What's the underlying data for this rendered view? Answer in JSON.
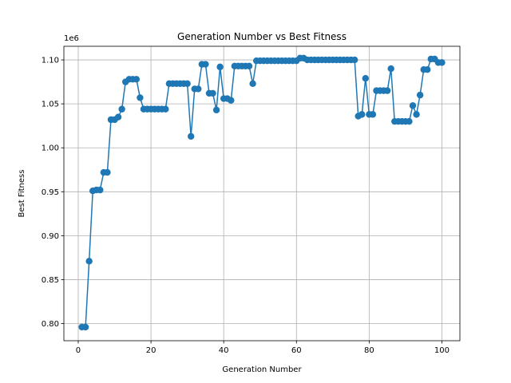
{
  "chart_data": {
    "type": "line",
    "title": "Generation Number vs Best Fitness",
    "xlabel": "Generation Number",
    "ylabel": "Best Fitness",
    "y_offset_label": "1e6",
    "xlim": [
      -3.95,
      104.95
    ],
    "ylim": [
      0.7805,
      1.1155
    ],
    "xticks": [
      0,
      20,
      40,
      60,
      80,
      100
    ],
    "xtick_labels": [
      "0",
      "20",
      "40",
      "60",
      "80",
      "100"
    ],
    "yticks": [
      0.8,
      0.85,
      0.9,
      0.95,
      1.0,
      1.05,
      1.1
    ],
    "ytick_labels": [
      "0.80",
      "0.85",
      "0.90",
      "0.95",
      "1.00",
      "1.05",
      "1.10"
    ],
    "grid": true,
    "marker": "circle",
    "color": "#1f77b4",
    "series": [
      {
        "x": [
          1,
          2,
          3,
          4,
          5,
          6,
          7,
          8,
          9,
          10,
          11,
          12,
          13,
          14,
          15,
          16,
          17,
          18,
          19,
          20,
          21,
          22,
          23,
          24,
          25,
          26,
          27,
          28,
          29,
          30,
          31,
          32,
          33,
          34,
          35,
          36,
          37,
          38,
          39,
          40,
          41,
          42,
          43,
          44,
          45,
          46,
          47,
          48,
          49,
          50,
          51,
          52,
          53,
          54,
          55,
          56,
          57,
          58,
          59,
          60,
          61,
          62,
          63,
          64,
          65,
          66,
          67,
          68,
          69,
          70,
          71,
          72,
          73,
          74,
          75,
          76,
          77,
          78,
          79,
          80,
          81,
          82,
          83,
          84,
          85,
          86,
          87,
          88,
          89,
          90,
          91,
          92,
          93,
          94,
          95,
          96,
          97,
          98,
          99,
          100
        ],
        "values": [
          0.796,
          0.796,
          0.871,
          0.951,
          0.952,
          0.952,
          0.972,
          0.972,
          1.032,
          1.032,
          1.035,
          1.044,
          1.075,
          1.078,
          1.078,
          1.078,
          1.057,
          1.044,
          1.044,
          1.044,
          1.044,
          1.044,
          1.044,
          1.044,
          1.073,
          1.073,
          1.073,
          1.073,
          1.073,
          1.073,
          1.013,
          1.067,
          1.067,
          1.095,
          1.095,
          1.062,
          1.062,
          1.043,
          1.092,
          1.056,
          1.056,
          1.054,
          1.093,
          1.093,
          1.093,
          1.093,
          1.093,
          1.073,
          1.099,
          1.099,
          1.099,
          1.099,
          1.099,
          1.099,
          1.099,
          1.099,
          1.099,
          1.099,
          1.099,
          1.099,
          1.102,
          1.102,
          1.1,
          1.1,
          1.1,
          1.1,
          1.1,
          1.1,
          1.1,
          1.1,
          1.1,
          1.1,
          1.1,
          1.1,
          1.1,
          1.1,
          1.036,
          1.038,
          1.079,
          1.038,
          1.038,
          1.065,
          1.065,
          1.065,
          1.065,
          1.09,
          1.03,
          1.03,
          1.03,
          1.03,
          1.03,
          1.048,
          1.038,
          1.06,
          1.089,
          1.089,
          1.101,
          1.101,
          1.097,
          1.097
        ]
      }
    ]
  }
}
